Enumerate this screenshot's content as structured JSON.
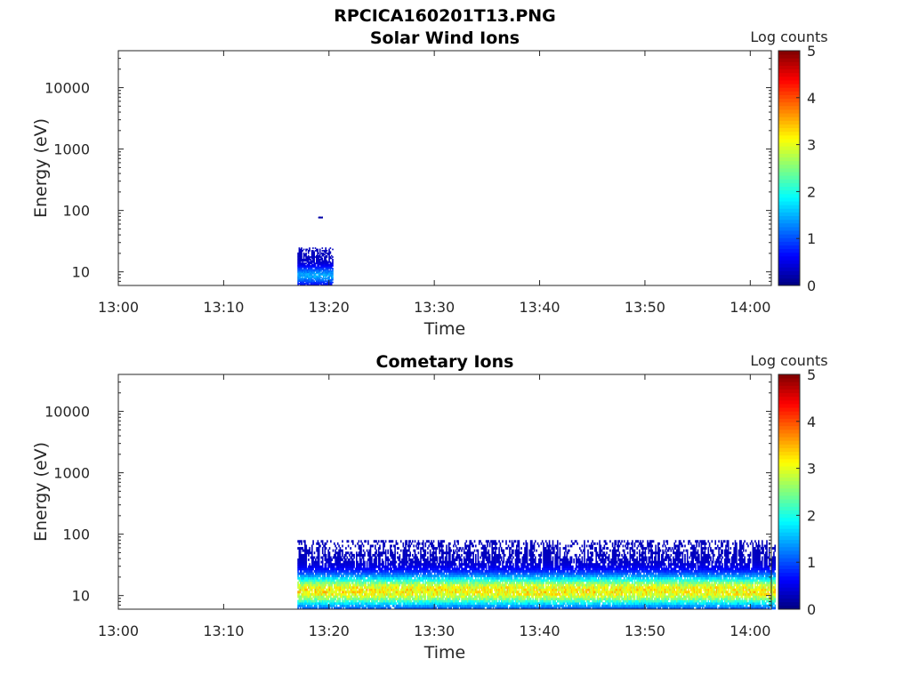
{
  "figure_title": "RPCICA160201T13.PNG",
  "chart_data": [
    {
      "type": "heatmap",
      "title": "Solar Wind Ions",
      "xlabel": "Time",
      "ylabel": "Energy (eV)",
      "x_range": [
        "13:00",
        "14:02"
      ],
      "x_ticks": [
        "13:00",
        "13:10",
        "13:20",
        "13:30",
        "13:40",
        "13:50",
        "14:00"
      ],
      "y_scale": "log",
      "y_range": [
        6,
        40000
      ],
      "y_ticks": [
        "10",
        "100",
        "1000",
        "10000"
      ],
      "colorbar": {
        "label": "Log counts",
        "min": 0,
        "max": 5,
        "ticks": [
          "0",
          "1",
          "2",
          "3",
          "4",
          "5"
        ]
      },
      "regions": [
        {
          "t_start": "13:17",
          "t_end": "13:20",
          "e_min": 6,
          "e_max": 25,
          "level_min": 0.3,
          "level_max": 1.6
        },
        {
          "t_start": "13:19",
          "t_end": "13:19",
          "e_min": 75,
          "e_max": 80,
          "level_min": 0.2,
          "level_max": 0.2
        }
      ]
    },
    {
      "type": "heatmap",
      "title": "Cometary Ions",
      "xlabel": "Time",
      "ylabel": "Energy (eV)",
      "x_range": [
        "13:00",
        "14:02"
      ],
      "x_ticks": [
        "13:00",
        "13:10",
        "13:20",
        "13:30",
        "13:40",
        "13:50",
        "14:00"
      ],
      "y_scale": "log",
      "y_range": [
        6,
        40000
      ],
      "y_ticks": [
        "10",
        "100",
        "1000",
        "10000"
      ],
      "colorbar": {
        "label": "Log counts",
        "min": 0,
        "max": 5,
        "ticks": [
          "0",
          "1",
          "2",
          "3",
          "4",
          "5"
        ]
      },
      "regions": [
        {
          "t_start": "13:17",
          "t_end": "14:02",
          "e_min": 6,
          "e_max": 80,
          "level_min": 0.3,
          "level_max": 3.6
        }
      ]
    }
  ]
}
